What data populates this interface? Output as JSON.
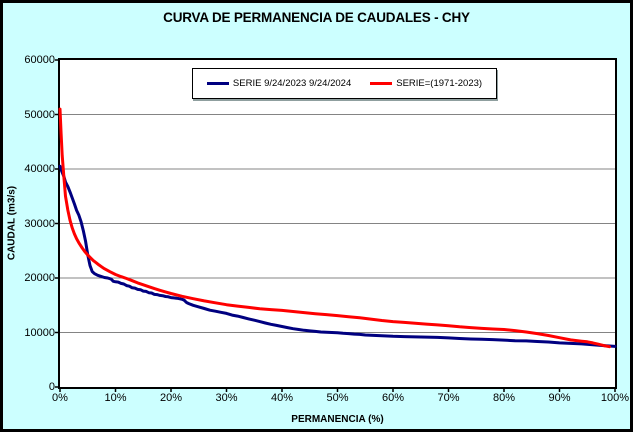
{
  "window": {
    "background": "#CCFFFF",
    "plot_background": "#FFFFFF",
    "border_color": "#000000",
    "gridline_color": "#848484"
  },
  "title": "CURVA DE PERMANENCIA DE CAUDALES - CHY",
  "legend": {
    "items": [
      {
        "label": "SERIE 9/24/2023 9/24/2024",
        "color": "#000080"
      },
      {
        "label": "SERIE=(1971-2023)",
        "color": "#FF0000"
      }
    ]
  },
  "chart_data": {
    "type": "line",
    "title": "CURVA DE PERMANENCIA DE CAUDALES - CHY",
    "xlabel": "PERMANENCIA (%)",
    "ylabel": "CAUDAL (m3/s)",
    "xlim": [
      0,
      100
    ],
    "ylim": [
      0,
      60000
    ],
    "x_ticks": [
      "0%",
      "10%",
      "20%",
      "30%",
      "40%",
      "50%",
      "60%",
      "70%",
      "80%",
      "90%",
      "100%"
    ],
    "y_ticks": [
      0,
      10000,
      20000,
      30000,
      40000,
      50000,
      60000
    ],
    "grid": "horizontal",
    "legend_position": "top-center",
    "series": [
      {
        "name": "SERIE 9/24/2023 9/24/2024",
        "color": "#000080",
        "width": 3,
        "points": [
          [
            0,
            40500
          ],
          [
            0.3,
            39600
          ],
          [
            0.7,
            38600
          ],
          [
            1,
            37600
          ],
          [
            1.4,
            36800
          ],
          [
            1.8,
            35800
          ],
          [
            2.2,
            34700
          ],
          [
            2.6,
            33600
          ],
          [
            3,
            32400
          ],
          [
            3.4,
            31500
          ],
          [
            3.8,
            30300
          ],
          [
            4.2,
            28700
          ],
          [
            4.6,
            26800
          ],
          [
            5,
            24200
          ],
          [
            5.4,
            22300
          ],
          [
            5.8,
            21200
          ],
          [
            6.2,
            20800
          ],
          [
            6.8,
            20500
          ],
          [
            7.4,
            20300
          ],
          [
            8,
            20100
          ],
          [
            8.6,
            20000
          ],
          [
            9.2,
            19800
          ],
          [
            9.6,
            19400
          ],
          [
            10,
            19300
          ],
          [
            10.5,
            19250
          ],
          [
            11,
            19000
          ],
          [
            11.5,
            18900
          ],
          [
            12,
            18600
          ],
          [
            12.5,
            18500
          ],
          [
            13,
            18200
          ],
          [
            13.5,
            18150
          ],
          [
            14,
            17900
          ],
          [
            14.5,
            17850
          ],
          [
            15,
            17600
          ],
          [
            15.5,
            17550
          ],
          [
            16,
            17300
          ],
          [
            16.5,
            17250
          ],
          [
            17,
            17000
          ],
          [
            17.5,
            16950
          ],
          [
            18,
            16800
          ],
          [
            18.5,
            16750
          ],
          [
            19,
            16600
          ],
          [
            19.5,
            16550
          ],
          [
            20,
            16400
          ],
          [
            20.5,
            16350
          ],
          [
            21,
            16300
          ],
          [
            21.5,
            16200
          ],
          [
            22,
            16100
          ],
          [
            22.4,
            15900
          ],
          [
            22.8,
            15500
          ],
          [
            23.2,
            15300
          ],
          [
            24,
            15000
          ],
          [
            25,
            14700
          ],
          [
            26,
            14400
          ],
          [
            27,
            14100
          ],
          [
            28,
            13900
          ],
          [
            29,
            13700
          ],
          [
            30,
            13500
          ],
          [
            31,
            13200
          ],
          [
            32,
            13000
          ],
          [
            33,
            12750
          ],
          [
            34,
            12500
          ],
          [
            35,
            12250
          ],
          [
            36,
            12000
          ],
          [
            37,
            11750
          ],
          [
            38,
            11500
          ],
          [
            39,
            11300
          ],
          [
            40,
            11100
          ],
          [
            41,
            10900
          ],
          [
            42,
            10700
          ],
          [
            43,
            10550
          ],
          [
            44,
            10400
          ],
          [
            45,
            10300
          ],
          [
            46,
            10200
          ],
          [
            47,
            10100
          ],
          [
            48,
            10050
          ],
          [
            49,
            10000
          ],
          [
            50,
            9950
          ],
          [
            51,
            9850
          ],
          [
            52,
            9800
          ],
          [
            53,
            9700
          ],
          [
            54,
            9650
          ],
          [
            55,
            9550
          ],
          [
            56,
            9500
          ],
          [
            57,
            9450
          ],
          [
            58,
            9400
          ],
          [
            59,
            9350
          ],
          [
            60,
            9300
          ],
          [
            62,
            9250
          ],
          [
            64,
            9200
          ],
          [
            66,
            9150
          ],
          [
            68,
            9100
          ],
          [
            70,
            9000
          ],
          [
            72,
            8900
          ],
          [
            74,
            8800
          ],
          [
            76,
            8750
          ],
          [
            78,
            8700
          ],
          [
            80,
            8600
          ],
          [
            82,
            8500
          ],
          [
            84,
            8450
          ],
          [
            86,
            8350
          ],
          [
            88,
            8250
          ],
          [
            90,
            8100
          ],
          [
            92,
            8000
          ],
          [
            94,
            7900
          ],
          [
            96,
            7750
          ],
          [
            98,
            7600
          ],
          [
            100,
            7450
          ]
        ]
      },
      {
        "name": "SERIE=(1971-2023)",
        "color": "#FF0000",
        "width": 3,
        "points": [
          [
            0,
            51000
          ],
          [
            0.2,
            46500
          ],
          [
            0.4,
            42500
          ],
          [
            0.7,
            38500
          ],
          [
            1,
            35000
          ],
          [
            1.4,
            32500
          ],
          [
            1.8,
            30600
          ],
          [
            2.2,
            29200
          ],
          [
            2.6,
            28100
          ],
          [
            3,
            27200
          ],
          [
            3.5,
            26300
          ],
          [
            4,
            25500
          ],
          [
            4.5,
            24800
          ],
          [
            5,
            24200
          ],
          [
            5.5,
            23700
          ],
          [
            6,
            23200
          ],
          [
            6.5,
            22800
          ],
          [
            7,
            22400
          ],
          [
            7.5,
            22050
          ],
          [
            8,
            21700
          ],
          [
            9,
            21150
          ],
          [
            10,
            20650
          ],
          [
            11,
            20250
          ],
          [
            12,
            19900
          ],
          [
            13,
            19500
          ],
          [
            14,
            19100
          ],
          [
            15,
            18750
          ],
          [
            16,
            18400
          ],
          [
            17,
            18050
          ],
          [
            18,
            17750
          ],
          [
            19,
            17450
          ],
          [
            20,
            17150
          ],
          [
            22,
            16650
          ],
          [
            24,
            16200
          ],
          [
            26,
            15800
          ],
          [
            28,
            15450
          ],
          [
            30,
            15100
          ],
          [
            32,
            14850
          ],
          [
            34,
            14600
          ],
          [
            36,
            14350
          ],
          [
            38,
            14200
          ],
          [
            40,
            14050
          ],
          [
            42,
            13850
          ],
          [
            44,
            13650
          ],
          [
            46,
            13450
          ],
          [
            48,
            13280
          ],
          [
            50,
            13100
          ],
          [
            52,
            12900
          ],
          [
            54,
            12700
          ],
          [
            56,
            12450
          ],
          [
            58,
            12200
          ],
          [
            60,
            12000
          ],
          [
            62,
            11850
          ],
          [
            64,
            11700
          ],
          [
            66,
            11550
          ],
          [
            68,
            11400
          ],
          [
            70,
            11250
          ],
          [
            72,
            11050
          ],
          [
            74,
            10900
          ],
          [
            76,
            10750
          ],
          [
            78,
            10650
          ],
          [
            80,
            10550
          ],
          [
            82,
            10350
          ],
          [
            84,
            10100
          ],
          [
            86,
            9800
          ],
          [
            88,
            9450
          ],
          [
            90,
            9050
          ],
          [
            92,
            8650
          ],
          [
            94,
            8400
          ],
          [
            95,
            8300
          ],
          [
            96,
            8100
          ],
          [
            97,
            7850
          ],
          [
            98,
            7600
          ],
          [
            99,
            7400
          ]
        ]
      }
    ]
  }
}
